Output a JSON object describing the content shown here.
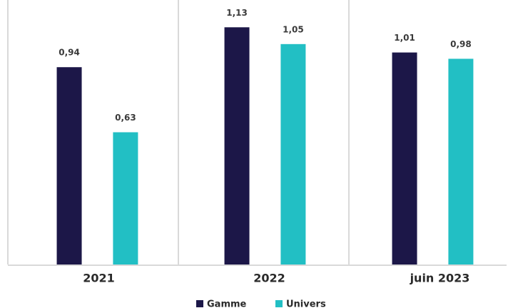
{
  "chart_data": {
    "type": "bar",
    "categories": [
      "2021",
      "2022",
      "juin 2023"
    ],
    "series": [
      {
        "name": "Gamme",
        "color": "#1c1748",
        "values": [
          0.94,
          1.13,
          1.01
        ],
        "value_labels": [
          "0,94",
          "1,13",
          "1,01"
        ]
      },
      {
        "name": "Univers",
        "color": "#22bfc4",
        "values": [
          0.63,
          1.05,
          0.98
        ],
        "value_labels": [
          "0,63",
          "1,05",
          "0,98"
        ]
      }
    ],
    "ylim": [
      0,
      1.26
    ],
    "legend": "bottom"
  }
}
